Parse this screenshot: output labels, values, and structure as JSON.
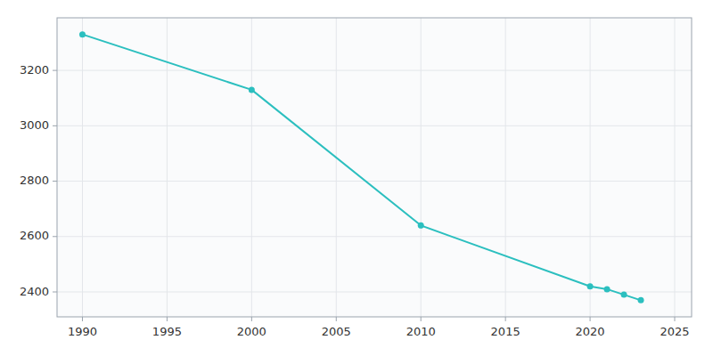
{
  "chart_data": {
    "type": "line",
    "x": [
      1990,
      2000,
      2010,
      2020,
      2021,
      2022,
      2023
    ],
    "values": [
      3330,
      3130,
      2640,
      2420,
      2410,
      2390,
      2370
    ],
    "color": "#2bbfbf",
    "marker": "circle",
    "xlim": [
      1988.5,
      2026
    ],
    "ylim": [
      2310,
      3390
    ],
    "xticks": [
      1990,
      1995,
      2000,
      2005,
      2010,
      2015,
      2020,
      2025
    ],
    "yticks": [
      2400,
      2600,
      2800,
      3000,
      3200
    ],
    "grid": true
  }
}
